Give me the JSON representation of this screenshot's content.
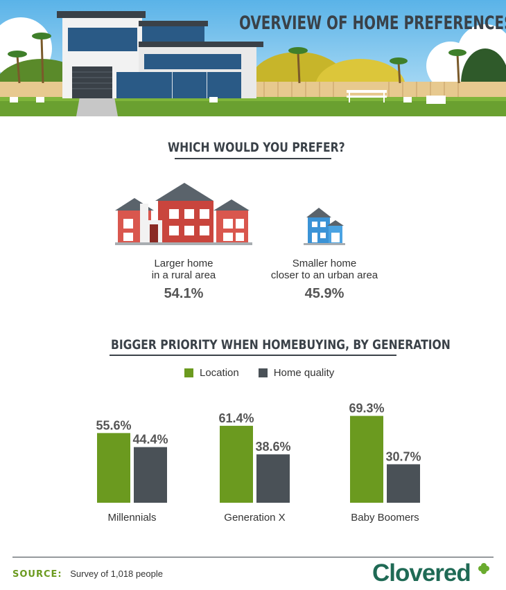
{
  "hero": {
    "title": "OVERVIEW OF HOME PREFERENCES"
  },
  "preference": {
    "title": "WHICH WOULD YOU PREFER?",
    "options": [
      {
        "label_line1": "Larger home",
        "label_line2": "in a rural area",
        "value": "54.1%"
      },
      {
        "label_line1": "Smaller home",
        "label_line2": "closer to an urban area",
        "value": "45.9%"
      }
    ]
  },
  "priority": {
    "title": "BIGGER PRIORITY WHEN HOMEBUYING, BY GENERATION",
    "legend": [
      {
        "label": "Location",
        "color": "#6b9a1f"
      },
      {
        "label": "Home quality",
        "color": "#4a5157"
      }
    ]
  },
  "chart_data": {
    "type": "bar",
    "categories": [
      "Millennials",
      "Generation X",
      "Baby Boomers"
    ],
    "series": [
      {
        "name": "Location",
        "values": [
          55.6,
          61.4,
          69.3
        ],
        "labels": [
          "55.6%",
          "61.4%",
          "69.3%"
        ],
        "color": "#6b9a1f"
      },
      {
        "name": "Home quality",
        "values": [
          44.4,
          38.6,
          30.7
        ],
        "labels": [
          "44.4%",
          "38.6%",
          "30.7%"
        ],
        "color": "#4a5157"
      }
    ],
    "title": "BIGGER PRIORITY WHEN HOMEBUYING, BY GENERATION",
    "ylim": [
      0,
      100
    ],
    "grid": false,
    "legend_position": "top-center"
  },
  "footer": {
    "source_label": "SOURCE:",
    "source_text": "Survey of 1,018 people",
    "brand": "Clovered"
  }
}
